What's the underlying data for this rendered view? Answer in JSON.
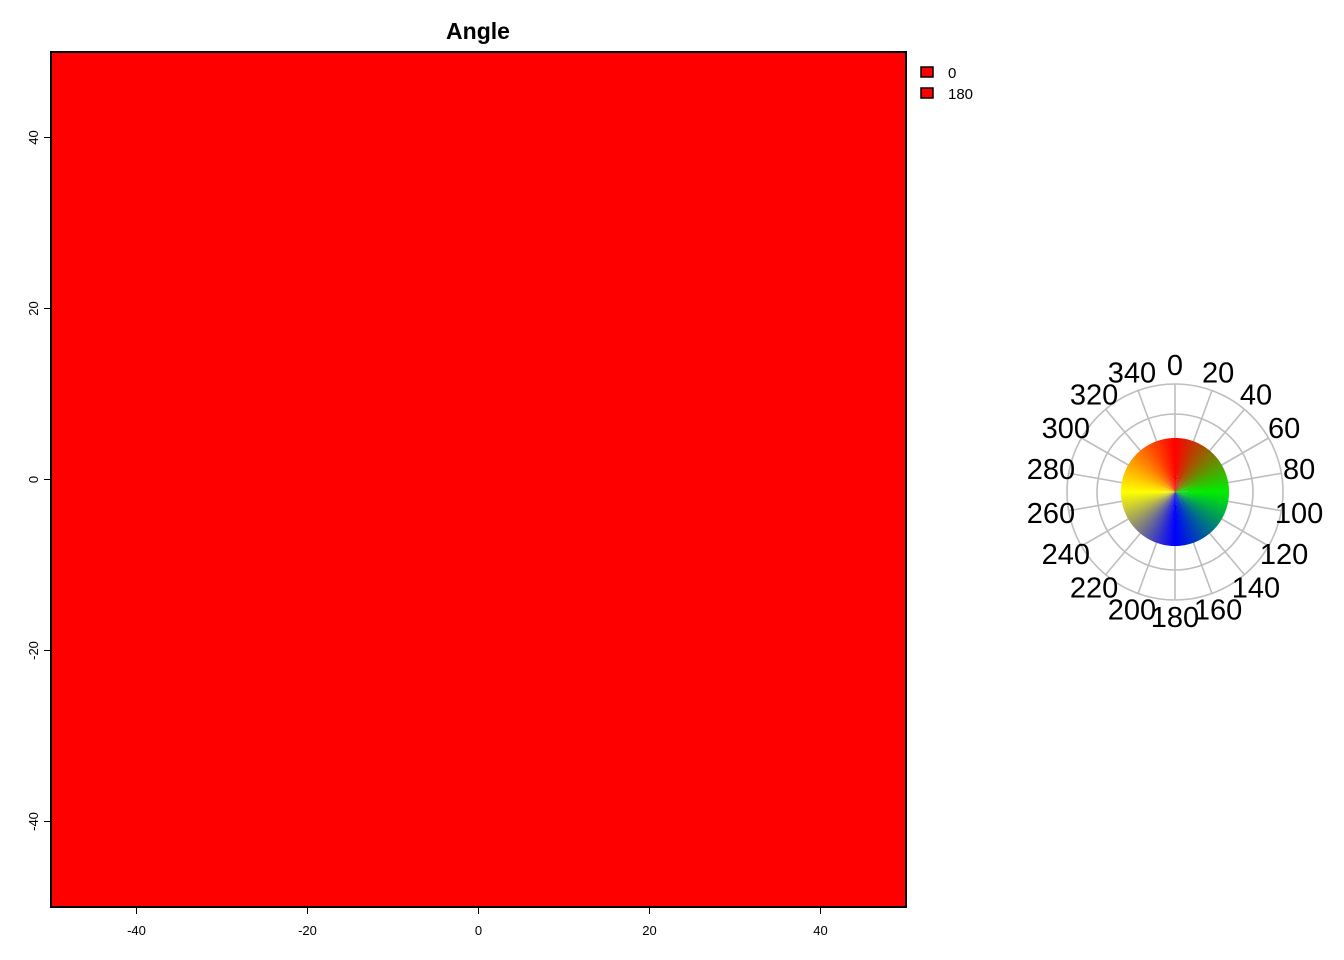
{
  "chart_data": {
    "type": "heatmap",
    "title": "Angle",
    "xlabel": "",
    "ylabel": "",
    "xlim": [
      -50,
      50
    ],
    "ylim": [
      -50,
      50
    ],
    "x_ticks": [
      -40,
      -20,
      0,
      20,
      40
    ],
    "y_ticks": [
      -40,
      -20,
      0,
      20,
      40
    ],
    "fill_color": "#ff0000",
    "legend": {
      "placement": "top-right",
      "entries": [
        {
          "label": "0",
          "color": "#ff0000"
        },
        {
          "label": "180",
          "color": "#ff0000"
        }
      ]
    },
    "color_wheel": {
      "labels": [
        "0",
        "20",
        "40",
        "60",
        "80",
        "100",
        "120",
        "140",
        "160",
        "180",
        "200",
        "220",
        "240",
        "260",
        "280",
        "300",
        "320",
        "340"
      ],
      "anchor_colors": [
        {
          "angle": 0,
          "color": "#ff0000"
        },
        {
          "angle": 90,
          "color": "#00ee00"
        },
        {
          "angle": 180,
          "color": "#0000ff"
        },
        {
          "angle": 270,
          "color": "#ffff00"
        }
      ],
      "grid_color": "#bebebe"
    }
  }
}
